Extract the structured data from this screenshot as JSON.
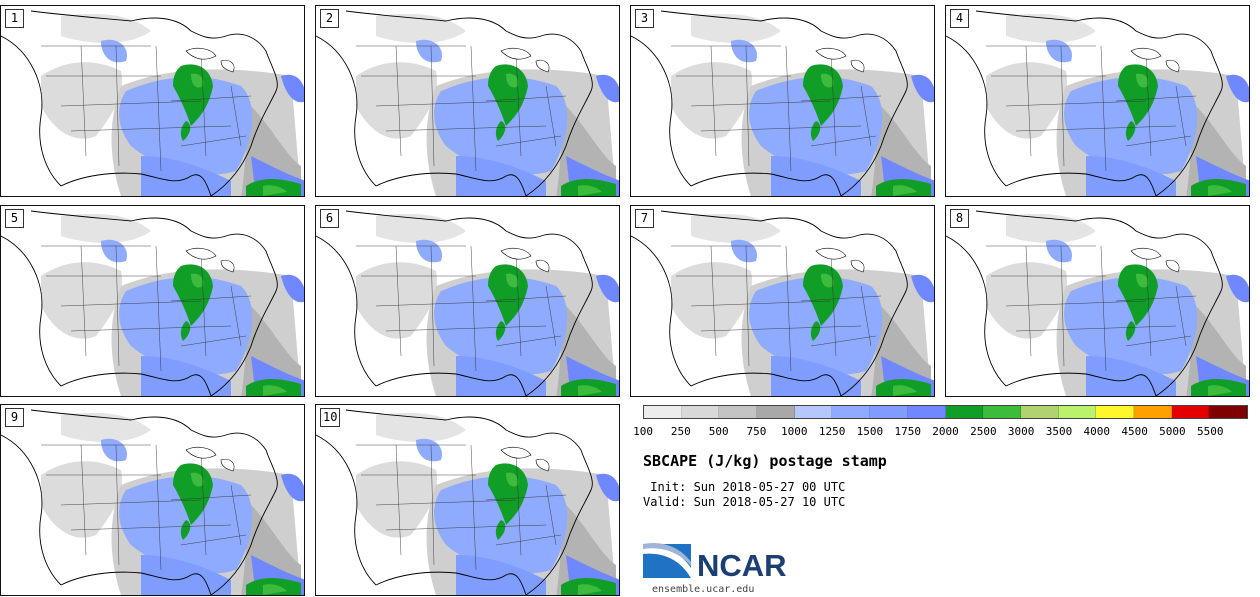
{
  "panels": [
    {
      "label": "1"
    },
    {
      "label": "2"
    },
    {
      "label": "3"
    },
    {
      "label": "4"
    },
    {
      "label": "5"
    },
    {
      "label": "6"
    },
    {
      "label": "7"
    },
    {
      "label": "8"
    },
    {
      "label": "9"
    },
    {
      "label": "10"
    }
  ],
  "colorbar": {
    "colors": [
      "#ececec",
      "#d8d8d8",
      "#c4c4c4",
      "#a8a8a8",
      "#b4c8ff",
      "#8eabff",
      "#7f9cff",
      "#6f88ff",
      "#119e27",
      "#3dbb3c",
      "#b2d272",
      "#baf36b",
      "#fff72c",
      "#ffa000",
      "#e50000",
      "#7f0000"
    ],
    "ticks": [
      "100",
      "250",
      "500",
      "750",
      "1000",
      "1250",
      "1500",
      "1750",
      "2000",
      "2500",
      "3000",
      "3500",
      "4000",
      "4500",
      "5000",
      "5500"
    ]
  },
  "title": "SBCAPE (J/kg) postage stamp",
  "init": " Init: Sun 2018-05-27 00 UTC",
  "valid": "Valid: Sun 2018-05-27 10 UTC",
  "logo": {
    "text": "NCAR",
    "url": "ensemble.ucar.edu"
  }
}
